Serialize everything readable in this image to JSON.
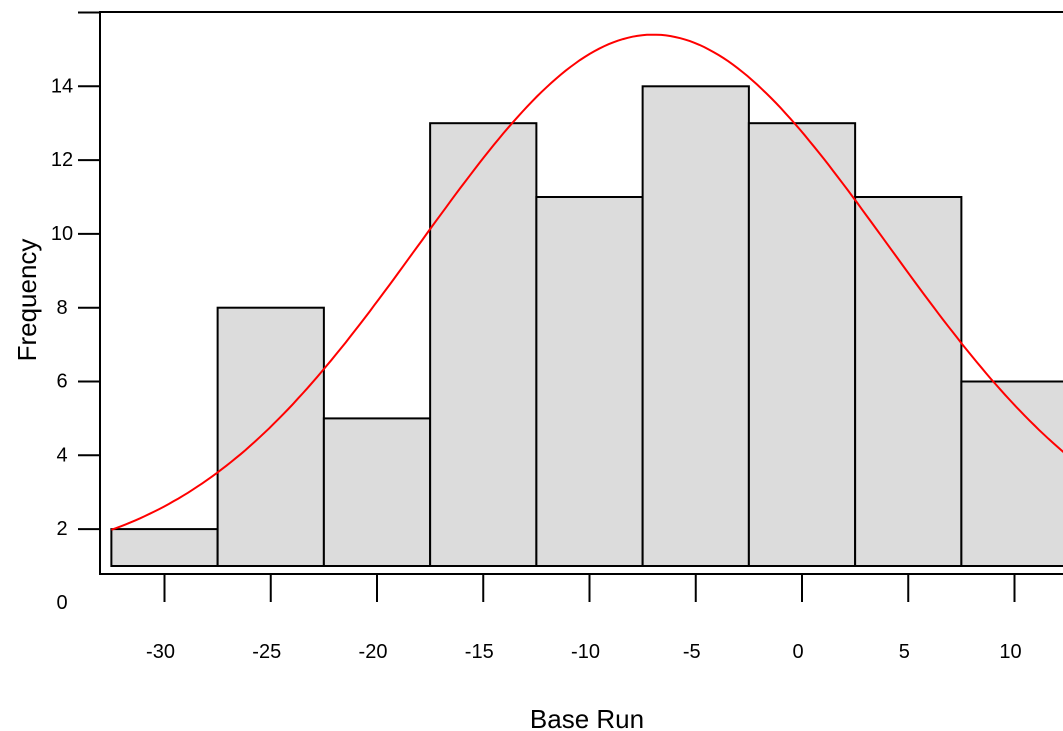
{
  "chart_data": {
    "type": "bar",
    "subtype": "histogram",
    "xlabel": "Base Run",
    "ylabel": "Frequency",
    "x_ticks": [
      -30,
      -25,
      -20,
      -15,
      -10,
      -5,
      0,
      5,
      10
    ],
    "y_ticks": [
      0,
      2,
      4,
      6,
      8,
      10,
      12,
      14
    ],
    "xlim": [
      -32.5,
      12.5
    ],
    "ylim": [
      0,
      15
    ],
    "bins": [
      {
        "start": -32.5,
        "end": -27.5,
        "count": 1
      },
      {
        "start": -27.5,
        "end": -22.5,
        "count": 7
      },
      {
        "start": -22.5,
        "end": -17.5,
        "count": 4
      },
      {
        "start": -17.5,
        "end": -12.5,
        "count": 12
      },
      {
        "start": -12.5,
        "end": -7.5,
        "count": 10
      },
      {
        "start": -7.5,
        "end": -2.5,
        "count": 13
      },
      {
        "start": -2.5,
        "end": 2.5,
        "count": 12
      },
      {
        "start": 2.5,
        "end": 7.5,
        "count": 10
      },
      {
        "start": 7.5,
        "end": 12.5,
        "count": 5
      }
    ],
    "density_curve": {
      "type": "normal",
      "mean": -7,
      "sd": 11,
      "peak": 14.4,
      "x_range": [
        -32.5,
        12.5
      ]
    },
    "grid": false,
    "legend": "none",
    "colors": {
      "bar_fill": "#dcdcdc",
      "bar_edge": "#000000",
      "curve": "#ff0000"
    }
  }
}
